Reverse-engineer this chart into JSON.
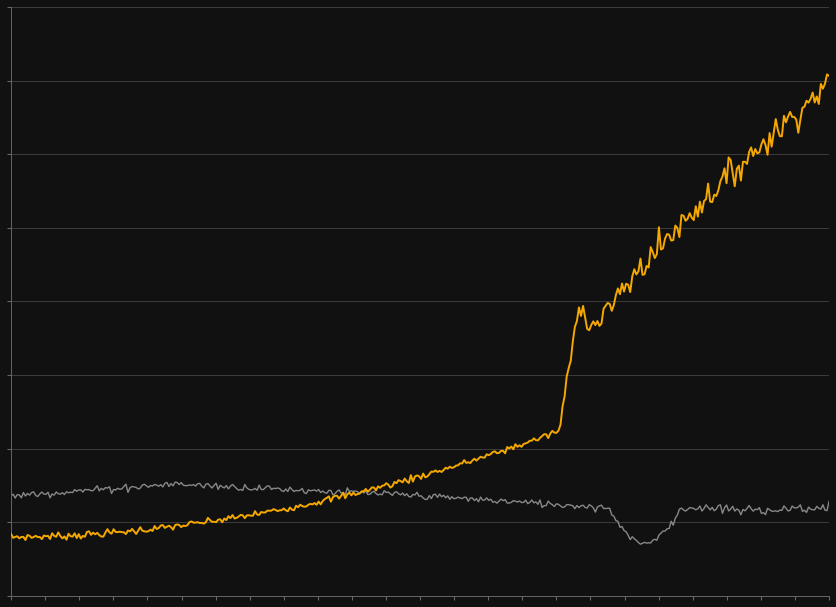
{
  "background_color": "#111111",
  "plot_bg_color": "#111111",
  "grid_color": "#444444",
  "online_color": "#f5a800",
  "bm_color": "#888888",
  "online_linewidth": 1.4,
  "bm_linewidth": 1.0,
  "n_points": 400,
  "ylim": [
    0.0,
    1.0
  ],
  "xlim": [
    0,
    399
  ]
}
